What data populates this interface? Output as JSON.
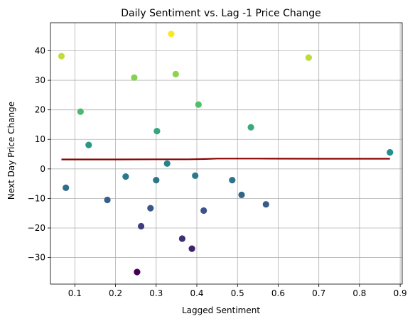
{
  "chart_data": {
    "type": "scatter",
    "title": "Daily Sentiment vs. Lag -1 Price Change",
    "xlabel": "Lagged Sentiment",
    "ylabel": "Next Day Price Change",
    "xlim": [
      0.04,
      0.905
    ],
    "ylim": [
      -39.0,
      49.5
    ],
    "xticks": [
      0.1,
      0.2,
      0.3,
      0.4,
      0.5,
      0.6,
      0.7,
      0.8,
      0.9
    ],
    "xtick_labels": [
      "0.1",
      "0.2",
      "0.3",
      "0.4",
      "0.5",
      "0.6",
      "0.7",
      "0.8",
      "0.9"
    ],
    "yticks": [
      -30,
      -20,
      -10,
      0,
      10,
      20,
      30,
      40
    ],
    "ytick_labels": [
      "−30",
      "−20",
      "−10",
      "0",
      "10",
      "20",
      "30",
      "40"
    ],
    "grid": true,
    "colormap": "viridis",
    "color_range": [
      -35,
      46
    ],
    "points": [
      {
        "x": 0.067,
        "y": 38.2
      },
      {
        "x": 0.078,
        "y": -6.4
      },
      {
        "x": 0.114,
        "y": 19.4
      },
      {
        "x": 0.134,
        "y": 8.1
      },
      {
        "x": 0.18,
        "y": -10.5
      },
      {
        "x": 0.225,
        "y": -2.6
      },
      {
        "x": 0.246,
        "y": 30.9
      },
      {
        "x": 0.253,
        "y": -34.9
      },
      {
        "x": 0.263,
        "y": -19.4
      },
      {
        "x": 0.286,
        "y": -13.3
      },
      {
        "x": 0.3,
        "y": -3.8
      },
      {
        "x": 0.302,
        "y": 12.8
      },
      {
        "x": 0.327,
        "y": 1.8
      },
      {
        "x": 0.337,
        "y": 45.7
      },
      {
        "x": 0.348,
        "y": 32.1
      },
      {
        "x": 0.364,
        "y": -23.6
      },
      {
        "x": 0.388,
        "y": -27.0
      },
      {
        "x": 0.396,
        "y": -2.3
      },
      {
        "x": 0.404,
        "y": 21.8
      },
      {
        "x": 0.417,
        "y": -14.1
      },
      {
        "x": 0.487,
        "y": -3.8
      },
      {
        "x": 0.51,
        "y": -8.8
      },
      {
        "x": 0.533,
        "y": 14.1
      },
      {
        "x": 0.57,
        "y": -12.0
      },
      {
        "x": 0.675,
        "y": 37.7
      },
      {
        "x": 0.875,
        "y": 5.6
      }
    ],
    "trend_line": {
      "color": "#8b0000",
      "x": [
        0.067,
        0.2,
        0.3,
        0.38,
        0.42,
        0.45,
        0.55,
        0.7,
        0.875
      ],
      "y": [
        3.2,
        3.2,
        3.25,
        3.25,
        3.35,
        3.5,
        3.5,
        3.45,
        3.45
      ]
    }
  }
}
